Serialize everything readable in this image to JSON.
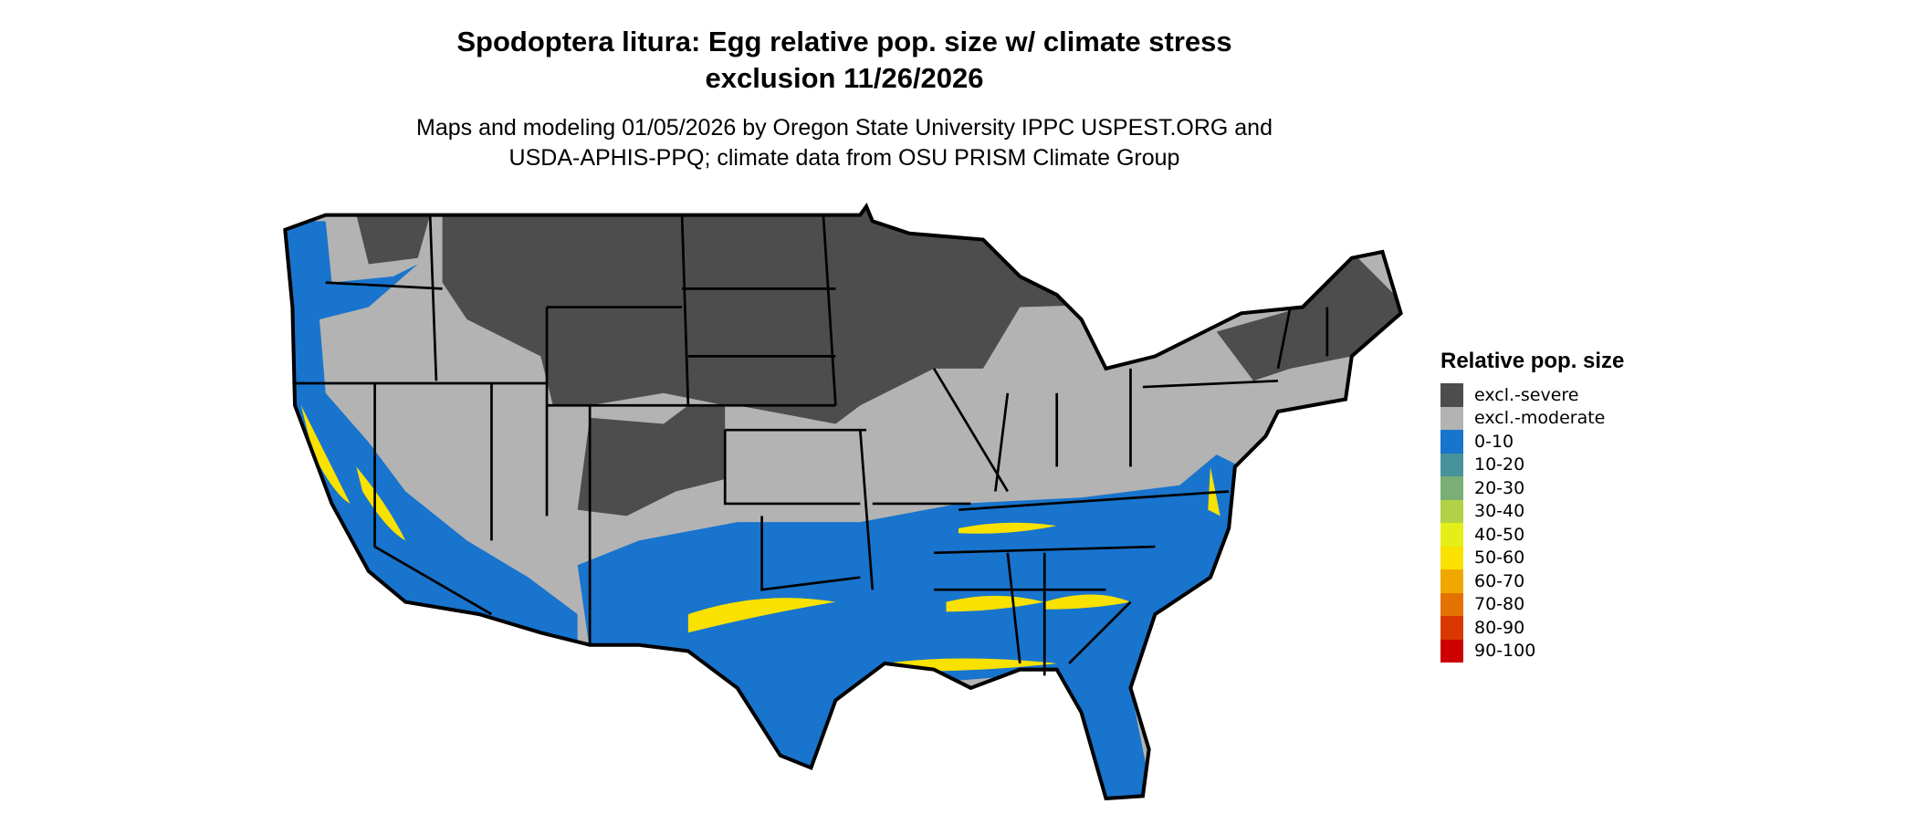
{
  "title_line1": "Spodoptera litura: Egg relative pop. size w/ climate stress",
  "title_line2": "exclusion 11/26/2026",
  "subtitle_line1": "Maps and modeling 01/05/2026 by Oregon State University IPPC USPEST.ORG and",
  "subtitle_line2": "USDA-APHIS-PPQ; climate data from OSU PRISM Climate Group",
  "legend": {
    "title": "Relative pop. size",
    "items": [
      {
        "label": "excl.-severe",
        "color": "#4d4d4d"
      },
      {
        "label": "excl.-moderate",
        "color": "#b3b3b3"
      },
      {
        "label": "0-10",
        "color": "#1874cd"
      },
      {
        "label": "10-20",
        "color": "#48929b"
      },
      {
        "label": "20-30",
        "color": "#7bae74"
      },
      {
        "label": "30-40",
        "color": "#b2d147"
      },
      {
        "label": "40-50",
        "color": "#e5ef17"
      },
      {
        "label": "50-60",
        "color": "#f9e100"
      },
      {
        "label": "60-70",
        "color": "#f0a800"
      },
      {
        "label": "70-80",
        "color": "#e37200"
      },
      {
        "label": "80-90",
        "color": "#d93800"
      },
      {
        "label": "90-100",
        "color": "#cc0000"
      }
    ]
  }
}
